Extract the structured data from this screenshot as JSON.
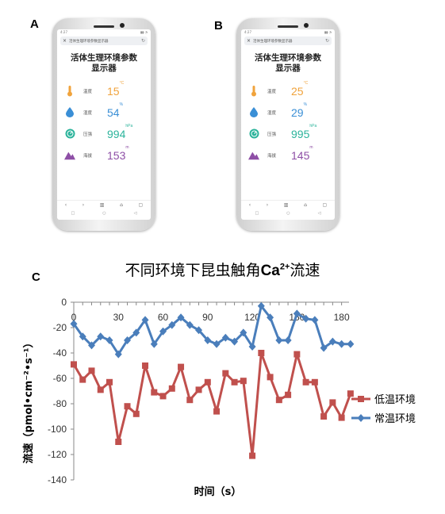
{
  "panels": {
    "a": "A",
    "b": "B",
    "c": "C"
  },
  "phones": [
    {
      "status_time": "4:27",
      "url": "活体生理环境参数显示器",
      "title_line1": "活体生理环境参数",
      "title_line2": "显示器",
      "readings": [
        {
          "icon": "thermometer-icon",
          "label": "温度",
          "value": "15",
          "unit": "°C",
          "color": "#f0a33c"
        },
        {
          "icon": "water-drop-icon",
          "label": "湿度",
          "value": "54",
          "unit": "%",
          "color": "#3a8fd6"
        },
        {
          "icon": "pressure-gauge-icon",
          "label": "压强",
          "value": "994",
          "unit": "hPa",
          "color": "#2bb39b"
        },
        {
          "icon": "mountain-icon",
          "label": "海拔",
          "value": "153",
          "unit": "m",
          "color": "#8e4fa6"
        }
      ]
    },
    {
      "status_time": "4:27",
      "url": "活体生理环境参数显示器",
      "title_line1": "活体生理环境参数",
      "title_line2": "显示器",
      "readings": [
        {
          "icon": "thermometer-icon",
          "label": "温度",
          "value": "25",
          "unit": "°C",
          "color": "#f0a33c"
        },
        {
          "icon": "water-drop-icon",
          "label": "湿度",
          "value": "29",
          "unit": "%",
          "color": "#3a8fd6"
        },
        {
          "icon": "pressure-gauge-icon",
          "label": "压强",
          "value": "995",
          "unit": "hPa",
          "color": "#2bb39b"
        },
        {
          "icon": "mountain-icon",
          "label": "海拔",
          "value": "145",
          "unit": "m",
          "color": "#8e4fa6"
        }
      ]
    }
  ],
  "chart_data": {
    "type": "line",
    "title_prefix": "不同环境下昆虫触角",
    "title_ion": "Ca",
    "title_sup": "2+",
    "title_suffix": "流速",
    "xlabel": "时间（s）",
    "ylabel": "流速（pmol•cm⁻²•s⁻¹）",
    "xlim": [
      0,
      185
    ],
    "ylim": [
      -140,
      0
    ],
    "xticks": [
      0,
      30,
      60,
      90,
      120,
      150,
      180
    ],
    "yticks": [
      0,
      -20,
      -40,
      -60,
      -80,
      -100,
      -120,
      -140
    ],
    "legend_position": "right",
    "series": [
      {
        "name": "低温环境",
        "color": "#c0504d",
        "marker": "square",
        "x": [
          0,
          6,
          12,
          18,
          24,
          30,
          36,
          42,
          48,
          54,
          60,
          66,
          72,
          78,
          84,
          90,
          96,
          102,
          108,
          114,
          120,
          126,
          132,
          138,
          144,
          150,
          156,
          162,
          168,
          174,
          180,
          186
        ],
        "y": [
          -49,
          -61,
          -54,
          -69,
          -63,
          -110,
          -82,
          -88,
          -50,
          -71,
          -74,
          -68,
          -51,
          -77,
          -69,
          -63,
          -86,
          -56,
          -63,
          -62,
          -121,
          -40,
          -59,
          -77,
          -73,
          -41,
          -63,
          -63,
          -90,
          -79,
          -91,
          -72
        ]
      },
      {
        "name": "常温环境",
        "color": "#4a7ebb",
        "marker": "diamond",
        "x": [
          0,
          6,
          12,
          18,
          24,
          30,
          36,
          42,
          48,
          54,
          60,
          66,
          72,
          78,
          84,
          90,
          96,
          102,
          108,
          114,
          120,
          126,
          132,
          138,
          144,
          150,
          156,
          162,
          168,
          174,
          180,
          186
        ],
        "y": [
          -17,
          -27,
          -34,
          -27,
          -30,
          -41,
          -30,
          -24,
          -14,
          -33,
          -23,
          -18,
          -12,
          -18,
          -22,
          -30,
          -33,
          -28,
          -31,
          -24,
          -35,
          -3,
          -12,
          -30,
          -30,
          -9,
          -13,
          -14,
          -36,
          -31,
          -33,
          -33
        ]
      }
    ]
  }
}
